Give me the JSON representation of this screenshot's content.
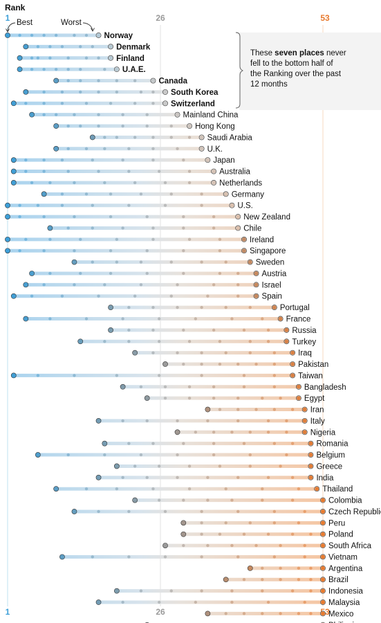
{
  "header": {
    "title": "Rank",
    "best_label": "Best",
    "worst_label": "Worst"
  },
  "annotation": {
    "lines": [
      [
        {
          "t": "These ",
          "b": false
        },
        {
          "t": "seven places",
          "b": true
        },
        {
          "t": " never",
          "b": false
        }
      ],
      [
        {
          "t": "fell to the bottom half of",
          "b": false
        }
      ],
      [
        {
          "t": "the Ranking over the past",
          "b": false
        }
      ],
      [
        {
          "t": "12 months",
          "b": false
        }
      ]
    ]
  },
  "colors": {
    "blue": "#3d9fd8",
    "orange": "#e87a2e",
    "mid_gray": "#9a9a9a",
    "light_blue": "#a9d3ee",
    "light_orange": "#f5c6a3"
  },
  "chart_data": {
    "type": "dot-range",
    "x_ticks": [
      {
        "value": 1,
        "label": "1"
      },
      {
        "value": 26,
        "label": "26"
      },
      {
        "value": 53,
        "label": "53"
      }
    ],
    "xlim": [
      1,
      53
    ],
    "rows": [
      {
        "name": "Norway",
        "best": 1,
        "worst": 16,
        "bold": true,
        "hist": [
          3,
          5,
          7,
          9,
          12,
          14
        ]
      },
      {
        "name": "Denmark",
        "best": 4,
        "worst": 18,
        "bold": true,
        "hist": [
          6,
          8,
          10,
          13,
          15
        ]
      },
      {
        "name": "Finland",
        "best": 3,
        "worst": 18,
        "bold": true,
        "hist": [
          5,
          6,
          8,
          11,
          14,
          16
        ]
      },
      {
        "name": "U.A.E.",
        "best": 3,
        "worst": 19,
        "bold": true,
        "hist": [
          5,
          7,
          9,
          11,
          13,
          17
        ]
      },
      {
        "name": "Canada",
        "best": 9,
        "worst": 25,
        "bold": true,
        "hist": [
          11,
          13,
          16,
          19,
          22
        ]
      },
      {
        "name": "South Korea",
        "best": 4,
        "worst": 27,
        "bold": true,
        "hist": [
          7,
          10,
          13,
          16,
          19,
          23,
          25
        ]
      },
      {
        "name": "Switzerland",
        "best": 2,
        "worst": 27,
        "bold": true,
        "hist": [
          4,
          7,
          10,
          14,
          18,
          22,
          25
        ]
      },
      {
        "name": "Mainland China",
        "best": 5,
        "worst": 29,
        "bold": false,
        "hist": [
          7,
          9,
          12,
          16,
          20,
          24
        ]
      },
      {
        "name": "Hong Kong",
        "best": 9,
        "worst": 31,
        "bold": false,
        "hist": [
          11,
          13,
          16,
          20,
          24,
          28
        ]
      },
      {
        "name": "Saudi Arabia",
        "best": 15,
        "worst": 33,
        "bold": false,
        "hist": [
          17,
          19,
          22,
          25,
          28,
          31
        ]
      },
      {
        "name": "U.K.",
        "best": 9,
        "worst": 33,
        "bold": false,
        "hist": [
          11,
          14,
          17,
          21,
          25,
          29
        ]
      },
      {
        "name": "Japan",
        "best": 2,
        "worst": 34,
        "bold": false,
        "hist": [
          4,
          7,
          10,
          15,
          20,
          25,
          30
        ]
      },
      {
        "name": "Australia",
        "best": 2,
        "worst": 35,
        "bold": false,
        "hist": [
          4,
          7,
          11,
          16,
          21,
          26,
          31
        ]
      },
      {
        "name": "Netherlands",
        "best": 2,
        "worst": 35,
        "bold": false,
        "hist": [
          5,
          8,
          12,
          17,
          22,
          27,
          31
        ]
      },
      {
        "name": "Germany",
        "best": 7,
        "worst": 37,
        "bold": false,
        "hist": [
          10,
          14,
          18,
          23,
          28,
          33
        ]
      },
      {
        "name": "U.S.",
        "best": 1,
        "worst": 38,
        "bold": false,
        "hist": [
          3,
          6,
          10,
          15,
          21,
          27,
          33
        ]
      },
      {
        "name": "New Zealand",
        "best": 1,
        "worst": 39,
        "bold": false,
        "hist": [
          3,
          7,
          12,
          18,
          24,
          30,
          35
        ]
      },
      {
        "name": "Chile",
        "best": 8,
        "worst": 39,
        "bold": false,
        "hist": [
          11,
          15,
          20,
          25,
          30,
          35
        ]
      },
      {
        "name": "Ireland",
        "best": 1,
        "worst": 40,
        "bold": false,
        "hist": [
          4,
          8,
          13,
          19,
          25,
          31,
          36
        ]
      },
      {
        "name": "Singapore",
        "best": 1,
        "worst": 40,
        "bold": false,
        "hist": [
          3,
          7,
          12,
          18,
          24,
          30,
          36
        ]
      },
      {
        "name": "Sweden",
        "best": 12,
        "worst": 41,
        "bold": false,
        "hist": [
          15,
          19,
          23,
          28,
          33,
          37
        ]
      },
      {
        "name": "Austria",
        "best": 5,
        "worst": 42,
        "bold": false,
        "hist": [
          8,
          13,
          18,
          24,
          30,
          36,
          39
        ]
      },
      {
        "name": "Israel",
        "best": 4,
        "worst": 42,
        "bold": false,
        "hist": [
          7,
          12,
          17,
          23,
          29,
          35,
          39
        ]
      },
      {
        "name": "Spain",
        "best": 2,
        "worst": 42,
        "bold": false,
        "hist": [
          5,
          10,
          16,
          22,
          28,
          34,
          39
        ]
      },
      {
        "name": "Portugal",
        "best": 18,
        "worst": 45,
        "bold": false,
        "hist": [
          21,
          25,
          29,
          33,
          37,
          41
        ]
      },
      {
        "name": "France",
        "best": 4,
        "worst": 46,
        "bold": false,
        "hist": [
          8,
          14,
          20,
          26,
          32,
          38,
          43
        ]
      },
      {
        "name": "Russia",
        "best": 18,
        "worst": 47,
        "bold": false,
        "hist": [
          21,
          25,
          30,
          35,
          40,
          44
        ]
      },
      {
        "name": "Turkey",
        "best": 13,
        "worst": 47,
        "bold": false,
        "hist": [
          17,
          21,
          26,
          31,
          36,
          41,
          44
        ]
      },
      {
        "name": "Iraq",
        "best": 22,
        "worst": 48,
        "bold": false,
        "hist": [
          25,
          29,
          33,
          37,
          41,
          45
        ]
      },
      {
        "name": "Pakistan",
        "best": 27,
        "worst": 48,
        "bold": false,
        "hist": [
          30,
          33,
          36,
          39,
          42,
          45
        ]
      },
      {
        "name": "Taiwan",
        "best": 2,
        "worst": 48,
        "bold": false,
        "hist": [
          6,
          12,
          19,
          26,
          33,
          40,
          45
        ]
      },
      {
        "name": "Bangladesh",
        "best": 20,
        "worst": 49,
        "bold": false,
        "hist": [
          23,
          27,
          31,
          35,
          40,
          45
        ]
      },
      {
        "name": "Egypt",
        "best": 24,
        "worst": 49,
        "bold": false,
        "hist": [
          27,
          31,
          35,
          39,
          43,
          46
        ]
      },
      {
        "name": "Iran",
        "best": 34,
        "worst": 50,
        "bold": false,
        "hist": [
          36,
          39,
          42,
          45,
          48
        ]
      },
      {
        "name": "Italy",
        "best": 16,
        "worst": 50,
        "bold": false,
        "hist": [
          20,
          24,
          29,
          34,
          39,
          44,
          47
        ]
      },
      {
        "name": "Nigeria",
        "best": 29,
        "worst": 50,
        "bold": false,
        "hist": [
          32,
          35,
          38,
          41,
          44,
          47
        ]
      },
      {
        "name": "Romania",
        "best": 17,
        "worst": 51,
        "bold": false,
        "hist": [
          21,
          25,
          30,
          35,
          40,
          45,
          48
        ]
      },
      {
        "name": "Belgium",
        "best": 6,
        "worst": 51,
        "bold": false,
        "hist": [
          11,
          17,
          23,
          29,
          35,
          41,
          47
        ]
      },
      {
        "name": "Greece",
        "best": 19,
        "worst": 51,
        "bold": false,
        "hist": [
          22,
          26,
          31,
          36,
          41,
          46
        ]
      },
      {
        "name": "India",
        "best": 16,
        "worst": 51,
        "bold": false,
        "hist": [
          20,
          24,
          29,
          34,
          39,
          44,
          48
        ]
      },
      {
        "name": "Thailand",
        "best": 9,
        "worst": 52,
        "bold": false,
        "hist": [
          14,
          19,
          25,
          31,
          37,
          43,
          49
        ]
      },
      {
        "name": "Colombia",
        "best": 22,
        "worst": 53,
        "bold": false,
        "hist": [
          26,
          30,
          34,
          38,
          43,
          48
        ]
      },
      {
        "name": "Czech Republic",
        "best": 12,
        "worst": 53,
        "bold": false,
        "hist": [
          16,
          21,
          27,
          33,
          39,
          45,
          50
        ]
      },
      {
        "name": "Peru",
        "best": 30,
        "worst": 53,
        "bold": false,
        "hist": [
          33,
          37,
          41,
          45,
          49
        ]
      },
      {
        "name": "Poland",
        "best": 30,
        "worst": 53,
        "bold": false,
        "hist": [
          33,
          36,
          40,
          44,
          48,
          51
        ]
      },
      {
        "name": "South Africa",
        "best": 27,
        "worst": 53,
        "bold": false,
        "hist": [
          30,
          34,
          38,
          42,
          46,
          50
        ]
      },
      {
        "name": "Vietnam",
        "best": 10,
        "worst": 53,
        "bold": false,
        "hist": [
          15,
          21,
          27,
          33,
          39,
          45,
          50
        ]
      },
      {
        "name": "Argentina",
        "best": 41,
        "worst": 53,
        "bold": false,
        "hist": [
          43,
          46,
          49,
          51
        ]
      },
      {
        "name": "Brazil",
        "best": 37,
        "worst": 53,
        "bold": false,
        "hist": [
          40,
          43,
          46,
          49,
          51
        ]
      },
      {
        "name": "Indonesia",
        "best": 19,
        "worst": 53,
        "bold": false,
        "hist": [
          23,
          28,
          33,
          38,
          43,
          48,
          51
        ]
      },
      {
        "name": "Malaysia",
        "best": 16,
        "worst": 53,
        "bold": false,
        "hist": [
          20,
          26,
          32,
          38,
          44,
          50
        ]
      },
      {
        "name": "Mexico",
        "best": 34,
        "worst": 53,
        "bold": false,
        "hist": [
          37,
          40,
          43,
          46,
          49,
          51
        ]
      },
      {
        "name": "Philippines",
        "best": 24,
        "worst": 53,
        "bold": false,
        "hist": [
          28,
          32,
          37,
          42,
          47,
          51
        ]
      }
    ]
  }
}
